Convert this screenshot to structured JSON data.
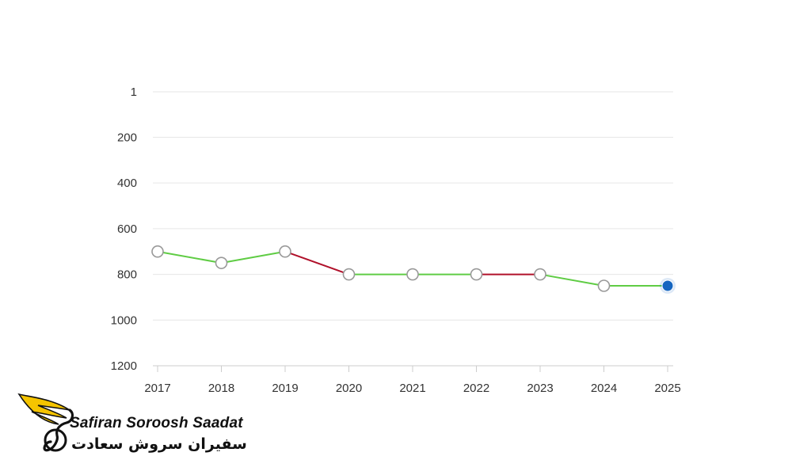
{
  "chart_data": {
    "type": "line",
    "title": "",
    "xlabel": "",
    "ylabel": "",
    "x": [
      "2017",
      "2018",
      "2019",
      "2020",
      "2021",
      "2022",
      "2023",
      "2024",
      "2025"
    ],
    "series": [
      {
        "values": [
          700,
          750,
          700,
          800,
          800,
          800,
          800,
          850,
          850
        ]
      }
    ],
    "y_reversed": true,
    "ylim": [
      1,
      1200
    ],
    "y_ticks": [
      1,
      200,
      400,
      600,
      800,
      1000,
      1200
    ],
    "grid": true,
    "legend": "none",
    "colors": {
      "improving": "#5fcc44",
      "worsening": "#b0102a",
      "marker_fill": "#ffffff",
      "marker_stroke": "#999999",
      "current_marker": "#1565c0",
      "grid": "#e6e6e6",
      "axis": "#cccccc"
    }
  },
  "logo": {
    "name_en": "Safiran Soroosh Saadat",
    "name_fa": "سفیران سروش سعادت",
    "colors": {
      "wing": "#f5c400",
      "text": "#111111"
    }
  }
}
